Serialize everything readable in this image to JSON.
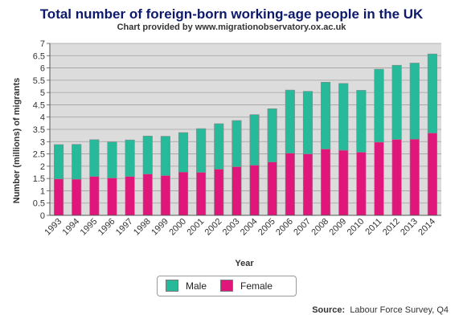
{
  "header": {
    "title": "Total number of foreign-born working-age people in the UK",
    "subtitle": "Chart provided by www.migrationobservatory.ox.ac.uk"
  },
  "legend": {
    "male_label": "Male",
    "female_label": "Female"
  },
  "source": {
    "label": "Source:",
    "text": "Labour Force Survey, Q4"
  },
  "colors": {
    "male": "#26b99a",
    "female": "#e0167a",
    "plot_bg": "#dcdcdc",
    "grid": "#a0a0a0"
  },
  "chart_data": {
    "type": "bar",
    "stacked": true,
    "title": "Total number of foreign-born working-age people in the UK",
    "xlabel": "Year",
    "ylabel": "Number (millions) of migrants",
    "ylim": [
      0,
      7
    ],
    "yticks": [
      "0",
      "0.5",
      "1",
      "1.5",
      "2",
      "2.5",
      "3",
      "3.5",
      "4",
      "4.5",
      "5",
      "5.5",
      "6",
      "6.5",
      "7"
    ],
    "grid": true,
    "categories": [
      "1993",
      "1994",
      "1995",
      "1996",
      "1997",
      "1998",
      "1999",
      "2000",
      "2001",
      "2002",
      "2003",
      "2004",
      "2005",
      "2006",
      "2007",
      "2008",
      "2009",
      "2010",
      "2011",
      "2012",
      "2013",
      "2014"
    ],
    "series": [
      {
        "name": "Female",
        "values": [
          1.48,
          1.47,
          1.58,
          1.52,
          1.58,
          1.68,
          1.62,
          1.76,
          1.75,
          1.88,
          1.98,
          2.04,
          2.17,
          2.53,
          2.5,
          2.7,
          2.65,
          2.57,
          2.98,
          3.09,
          3.1,
          3.35
        ]
      },
      {
        "name": "Male",
        "values": [
          1.4,
          1.42,
          1.5,
          1.47,
          1.49,
          1.55,
          1.6,
          1.61,
          1.78,
          1.85,
          1.88,
          2.06,
          2.17,
          2.57,
          2.55,
          2.72,
          2.72,
          2.52,
          2.97,
          3.02,
          3.1,
          3.22
        ]
      }
    ]
  }
}
